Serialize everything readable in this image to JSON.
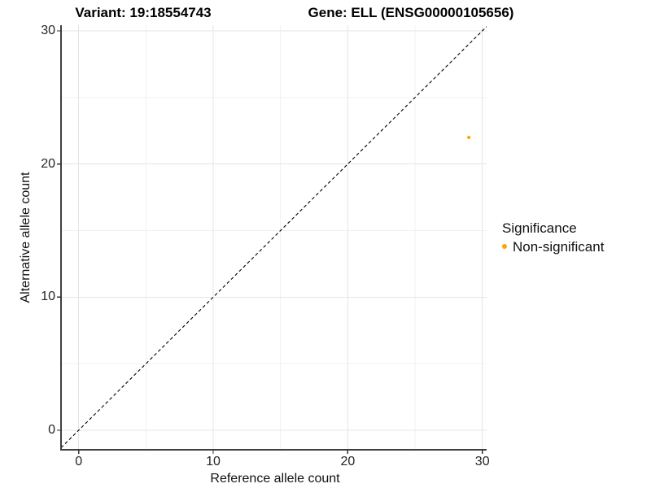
{
  "figure": {
    "title_left": "Variant: 19:18554743",
    "title_right": "Gene: ELL (ENSG00000105656)"
  },
  "chart_data": {
    "type": "scatter",
    "title": "Variant: 19:18554743    Gene: ELL (ENSG00000105656)",
    "xlabel": "Reference allele count",
    "ylabel": "Alternative allele count",
    "x_ticks": [
      0,
      10,
      20,
      30
    ],
    "y_ticks": [
      0,
      10,
      20,
      30
    ],
    "x_minor_ticks": [
      5,
      15,
      25
    ],
    "y_minor_ticks": [
      5,
      15,
      25
    ],
    "xlim": [
      -1.3,
      30.3
    ],
    "ylim": [
      -1.5,
      30.4
    ],
    "grid": "major+minor",
    "points": [
      {
        "x": 29,
        "y": 22,
        "series": "Non-significant"
      }
    ],
    "identity_line": {
      "equation": "y = x",
      "style": "dashed",
      "color": "#000000"
    },
    "legend": {
      "title": "Significance",
      "position": "right",
      "entries": [
        {
          "label": "Non-significant",
          "color": "#FFA500"
        }
      ]
    },
    "colors": {
      "point": "#FFA500",
      "grid_major": "#e4e4e4",
      "grid_minor": "#f1f1f1",
      "axis_line": "#3f3f3f",
      "tick_mark": "#333333"
    }
  }
}
